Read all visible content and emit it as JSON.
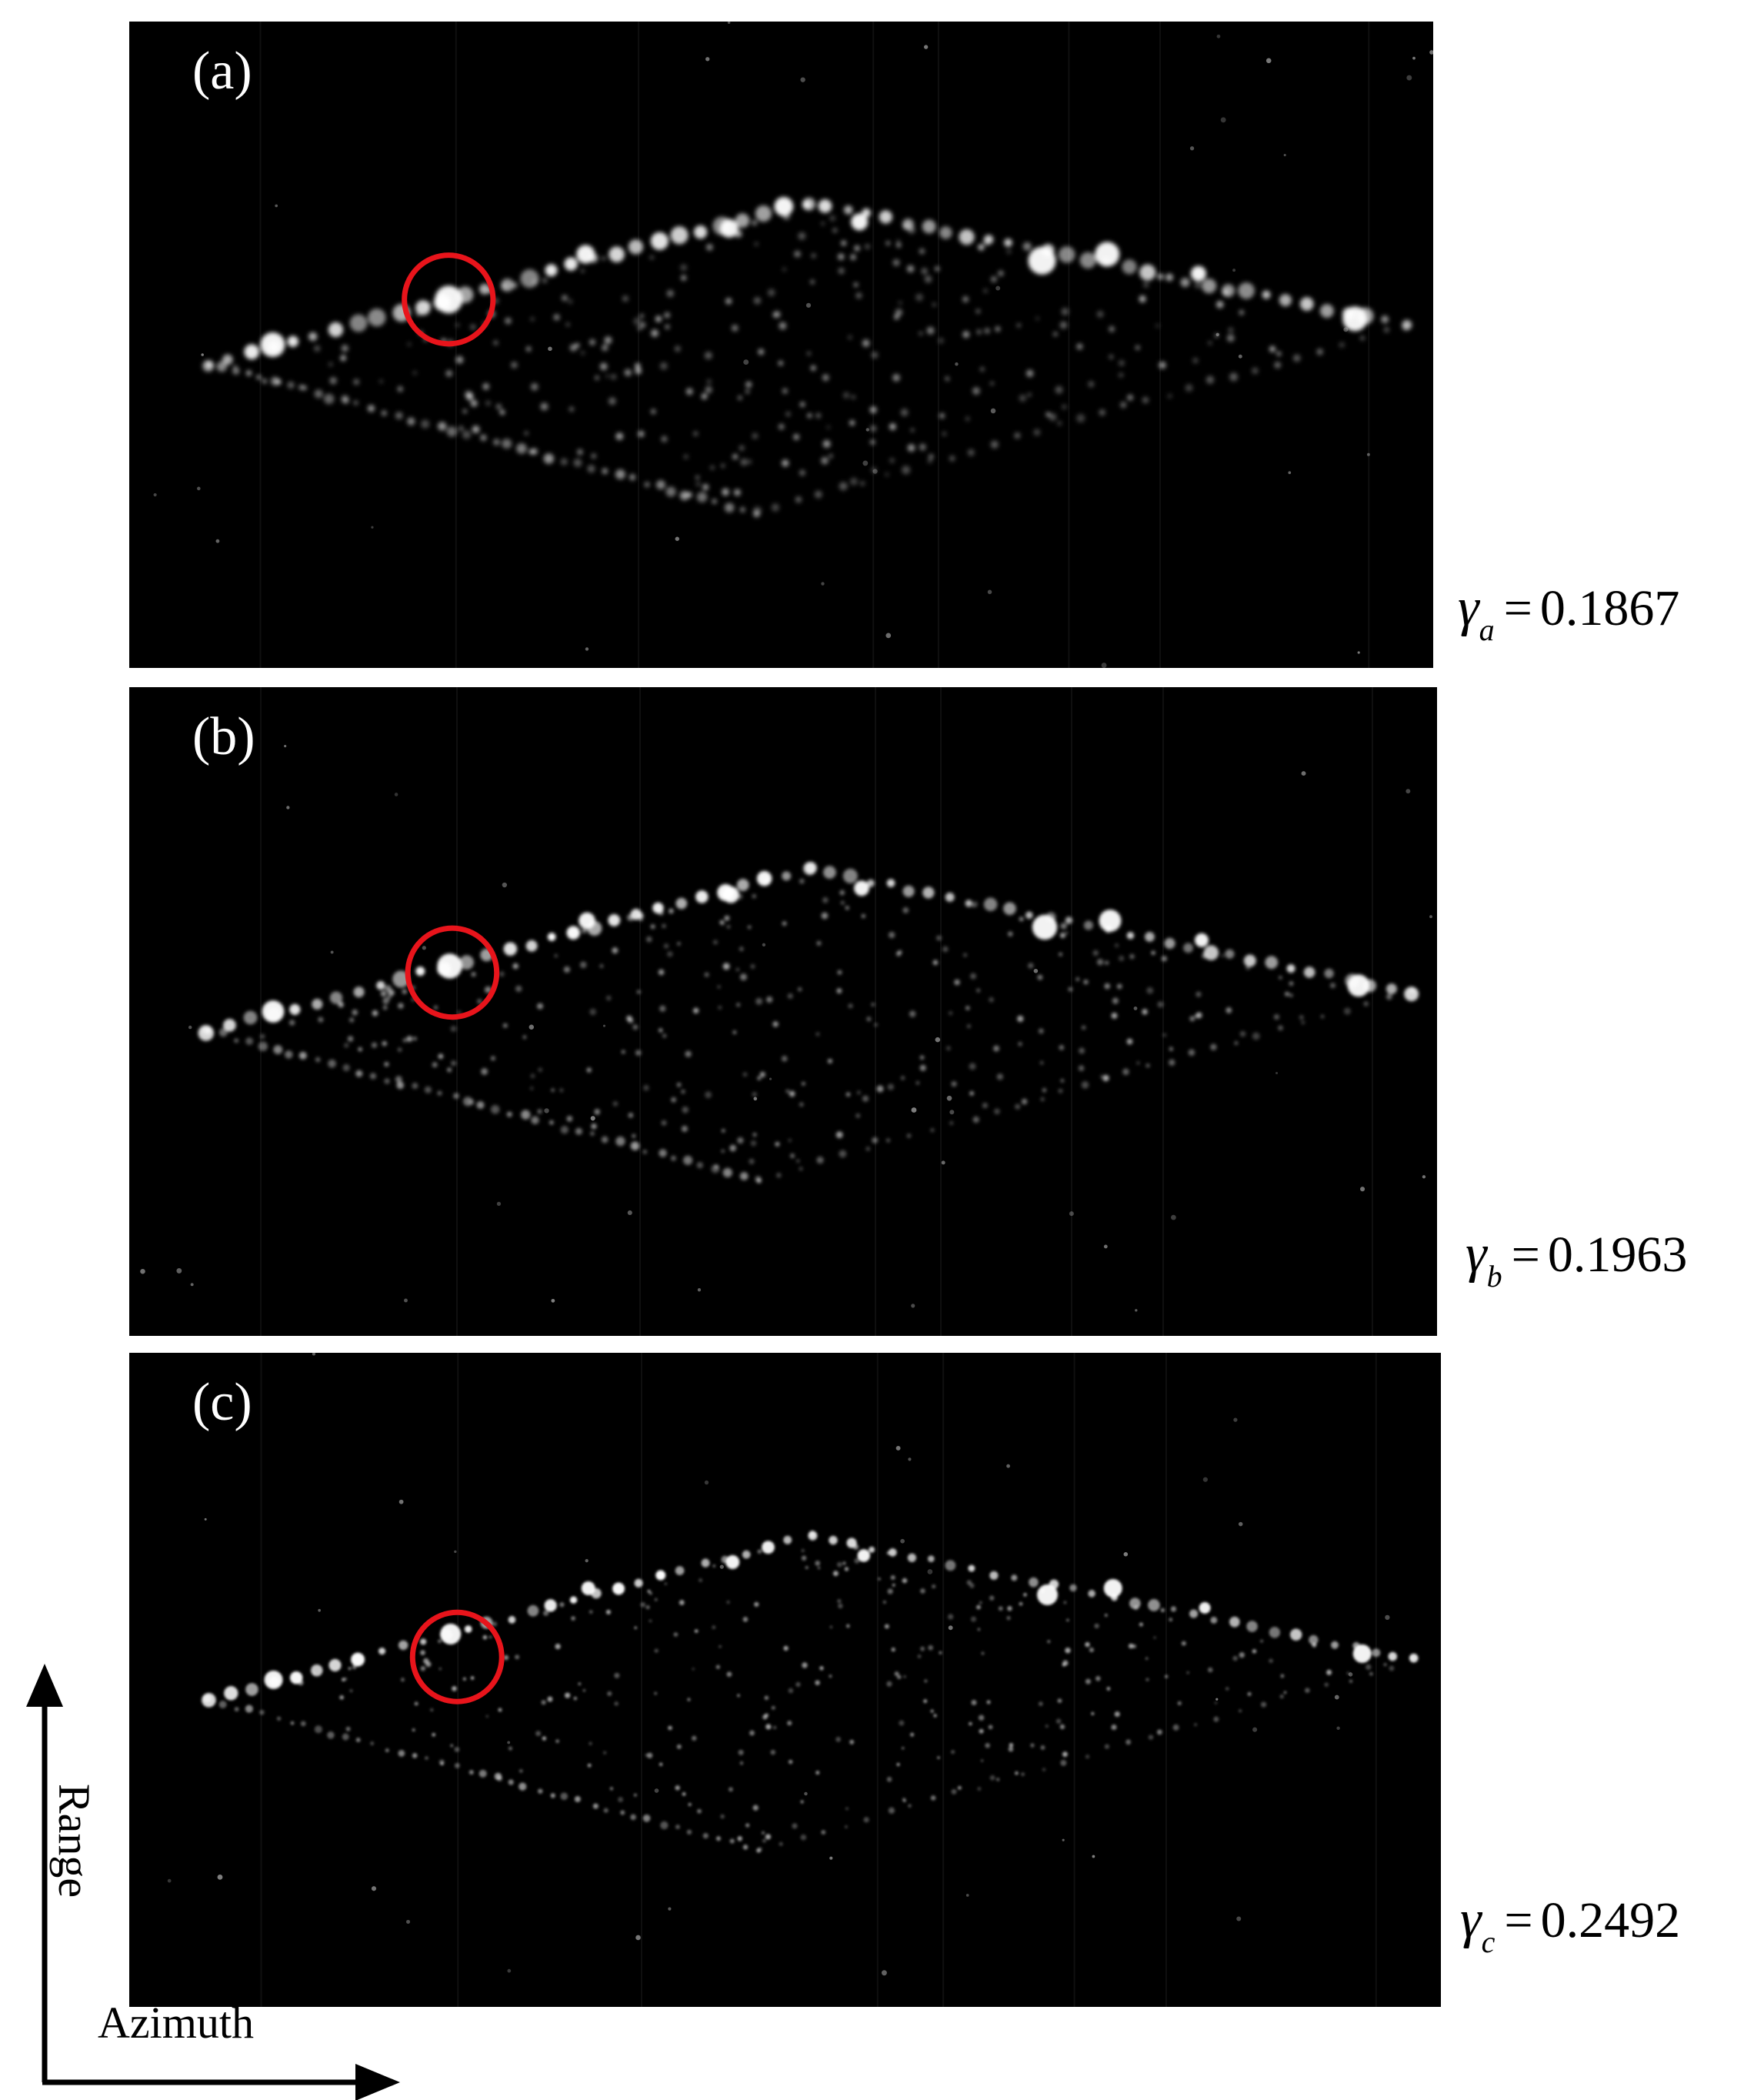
{
  "panels": [
    {
      "label": "(a)",
      "gamma_symbol": "γ",
      "gamma_sub": "a",
      "gamma_eq": "=",
      "gamma_value": "0.1867"
    },
    {
      "label": "(b)",
      "gamma_symbol": "γ",
      "gamma_sub": "b",
      "gamma_eq": "=",
      "gamma_value": "0.1963"
    },
    {
      "label": "(c)",
      "gamma_symbol": "γ",
      "gamma_sub": "c",
      "gamma_eq": "=",
      "gamma_value": "0.2492"
    }
  ],
  "axes": {
    "vertical_label": "Range",
    "horizontal_label": "Azimuth"
  },
  "colors": {
    "marker_circle": "#e8141b",
    "image_background": "#000000",
    "scatterer": "#ffffff"
  }
}
